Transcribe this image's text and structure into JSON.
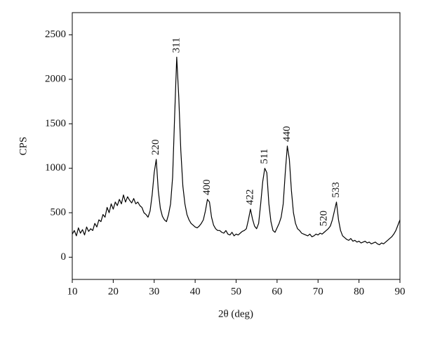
{
  "chart_data": {
    "type": "line",
    "xlabel": "2θ (deg)",
    "ylabel": "CPS",
    "color": "#000000",
    "xlim": [
      10,
      90
    ],
    "xticks": [
      10,
      20,
      30,
      40,
      50,
      60,
      70,
      80,
      90
    ],
    "ylim": [
      -250,
      2750
    ],
    "yticks": [
      0,
      500,
      1000,
      1500,
      2000,
      2500
    ],
    "x": [
      10,
      10.5,
      11,
      11.5,
      12,
      12.5,
      13,
      13.5,
      14,
      14.5,
      15,
      15.5,
      16,
      16.5,
      17,
      17.5,
      18,
      18.5,
      19,
      19.5,
      20,
      20.5,
      21,
      21.5,
      22,
      22.5,
      23,
      23.5,
      24,
      24.5,
      25,
      25.5,
      26,
      26.5,
      27,
      27.5,
      28,
      28.5,
      29,
      29.5,
      30,
      30.5,
      31,
      31.5,
      32,
      32.5,
      33,
      33.5,
      34,
      34.5,
      35,
      35.5,
      36,
      36.5,
      37,
      37.5,
      38,
      38.5,
      39,
      39.5,
      40,
      40.5,
      41,
      41.5,
      42,
      42.5,
      43,
      43.5,
      44,
      44.5,
      45,
      45.5,
      46,
      46.5,
      47,
      47.5,
      48,
      48.5,
      49,
      49.5,
      50,
      50.5,
      51,
      51.5,
      52,
      52.5,
      53,
      53.5,
      54,
      54.5,
      55,
      55.5,
      56,
      56.5,
      57,
      57.5,
      58,
      58.5,
      59,
      59.5,
      60,
      60.5,
      61,
      61.5,
      62,
      62.5,
      63,
      63.5,
      64,
      64.5,
      65,
      65.5,
      66,
      66.5,
      67,
      67.5,
      68,
      68.5,
      69,
      69.5,
      70,
      70.5,
      71,
      71.5,
      72,
      72.5,
      73,
      73.5,
      74,
      74.5,
      75,
      75.5,
      76,
      76.5,
      77,
      77.5,
      78,
      78.5,
      79,
      79.5,
      80,
      80.5,
      81,
      81.5,
      82,
      82.5,
      83,
      83.5,
      84,
      84.5,
      85,
      85.5,
      86,
      86.5,
      87,
      87.5,
      88,
      88.5,
      89,
      89.5,
      90
    ],
    "values": [
      260,
      300,
      240,
      330,
      270,
      310,
      250,
      340,
      290,
      320,
      300,
      380,
      340,
      420,
      400,
      480,
      450,
      560,
      500,
      600,
      540,
      620,
      580,
      650,
      600,
      700,
      620,
      680,
      640,
      610,
      660,
      600,
      620,
      580,
      560,
      500,
      480,
      450,
      520,
      700,
      950,
      1100,
      750,
      550,
      460,
      420,
      400,
      480,
      600,
      900,
      1600,
      2250,
      1800,
      1200,
      800,
      600,
      480,
      420,
      380,
      360,
      340,
      330,
      350,
      380,
      420,
      520,
      650,
      620,
      450,
      360,
      320,
      300,
      300,
      280,
      270,
      300,
      260,
      250,
      280,
      240,
      260,
      250,
      270,
      290,
      300,
      320,
      420,
      540,
      430,
      350,
      320,
      380,
      600,
      850,
      1000,
      950,
      600,
      400,
      300,
      280,
      330,
      380,
      450,
      600,
      950,
      1250,
      1100,
      750,
      500,
      380,
      320,
      300,
      270,
      260,
      250,
      240,
      260,
      230,
      240,
      260,
      250,
      270,
      260,
      280,
      300,
      320,
      350,
      420,
      520,
      620,
      420,
      300,
      240,
      220,
      200,
      190,
      210,
      180,
      190,
      170,
      180,
      160,
      170,
      180,
      160,
      170,
      150,
      160,
      170,
      150,
      140,
      160,
      150,
      170,
      190,
      210,
      230,
      260,
      300,
      360,
      420
    ],
    "annotations": [
      {
        "label": "220",
        "x": 30.5
      },
      {
        "label": "311",
        "x": 35.5
      },
      {
        "label": "400",
        "x": 43
      },
      {
        "label": "422",
        "x": 53.5
      },
      {
        "label": "511",
        "x": 57
      },
      {
        "label": "440",
        "x": 62.5
      },
      {
        "label": "520",
        "x": 71.5
      },
      {
        "label": "533",
        "x": 74.5
      }
    ]
  }
}
